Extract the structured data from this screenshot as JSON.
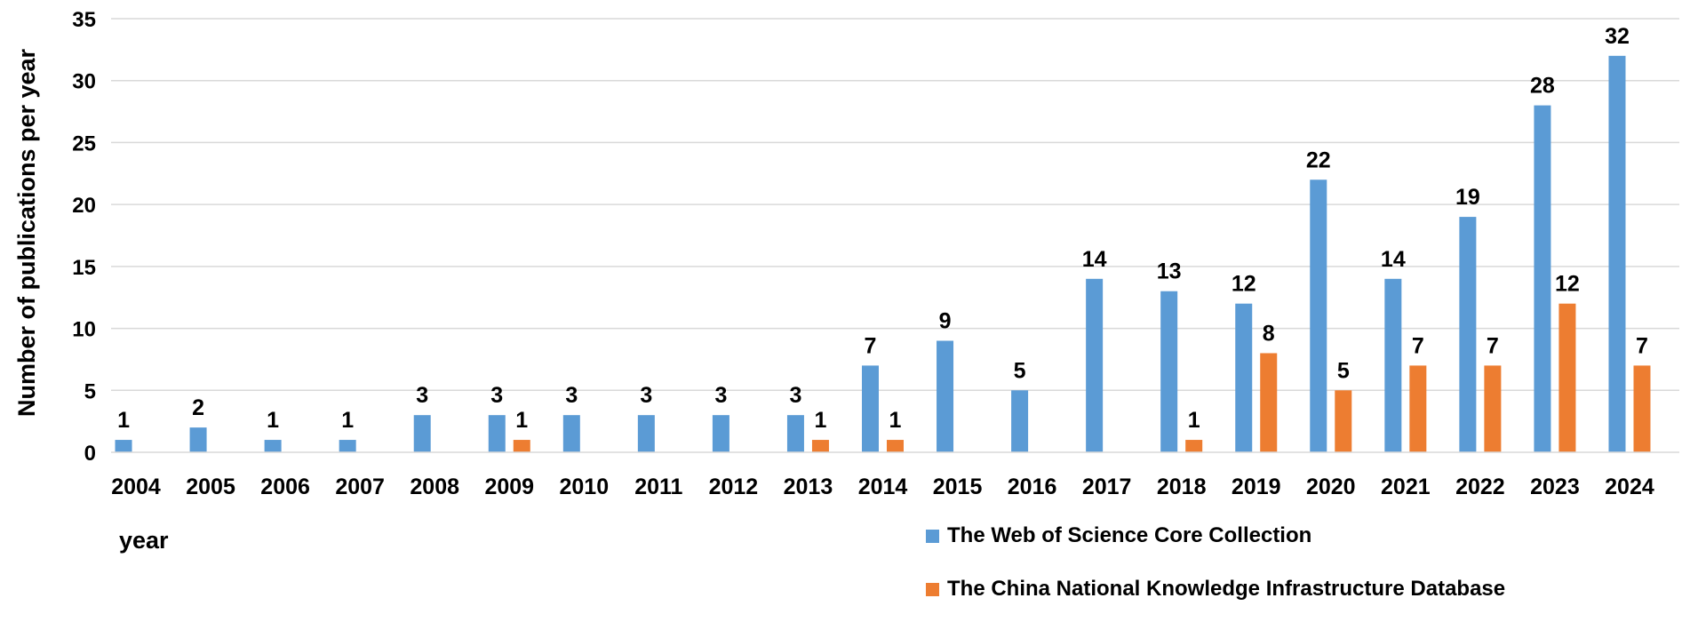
{
  "chart_data": {
    "type": "bar",
    "xlabel": "year",
    "ylabel": "Number of publications per year",
    "ylim": [
      0,
      35
    ],
    "yticks": [
      0,
      5,
      10,
      15,
      20,
      25,
      30,
      35
    ],
    "grid": true,
    "legend_position": "bottom-right",
    "categories": [
      "2004",
      "2005",
      "2006",
      "2007",
      "2008",
      "2009",
      "2010",
      "2011",
      "2012",
      "2013",
      "2014",
      "2015",
      "2016",
      "2017",
      "2018",
      "2019",
      "2020",
      "2021",
      "2022",
      "2023",
      "2024"
    ],
    "series": [
      {
        "name": "The Web of Science Core Collection",
        "color": "#5b9bd5",
        "values": [
          1,
          2,
          1,
          1,
          3,
          3,
          3,
          3,
          3,
          3,
          7,
          9,
          5,
          14,
          13,
          12,
          22,
          14,
          19,
          28,
          32
        ]
      },
      {
        "name": "The China National Knowledge Infrastructure Database",
        "color": "#ed7d31",
        "values": [
          null,
          null,
          null,
          null,
          null,
          1,
          null,
          null,
          null,
          1,
          1,
          null,
          null,
          null,
          1,
          8,
          5,
          7,
          7,
          12,
          7
        ]
      }
    ]
  }
}
